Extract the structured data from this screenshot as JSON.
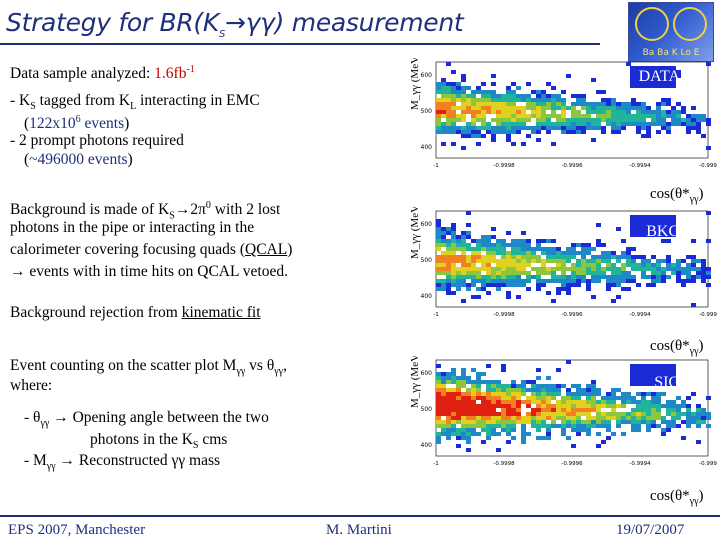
{
  "title": "Strategy for BR(K_S→γγ) measurement",
  "logo": {
    "text": "Ba Ba K Lo E"
  },
  "text": {
    "sample_label": "Data sample analyzed:",
    "sample_value": "1.6fb",
    "sample_exp": "-1",
    "bullet1": "- K_S tagged from K_L interacting in EMC",
    "bullet1_val": "(122x10^6 events)",
    "bullet2": "- 2 prompt photons required",
    "bullet2_val": "(~496000 events)",
    "bkg_line1": "Background is made of K_S→2π0 with 2 lost",
    "bkg_line2": "photons in the pipe or interacting in the",
    "bkg_line3": "calorimeter covering focusing quads (QCAL)",
    "bkg_line4": "→ events with in time hits on QCAL vetoed.",
    "rejection": "Background rejection from kinematic fit",
    "counting_line1": "Event counting on the scatter plot Mγγ vs θγγ,",
    "counting_line2": "where:",
    "def1_a": "- θγγ → Opening angle between the two",
    "def1_b": "photons in the K_S cms",
    "def2": "- Mγγ → Reconstructed γγ mass"
  },
  "plots": [
    {
      "label": "DATA",
      "ylabel": "M_γγ (MeV)",
      "yticks": [
        "600",
        "500",
        "400"
      ],
      "xticks": [
        "-1",
        "-0.9998",
        "-0.9996",
        "-0.9994",
        "-0.999"
      ]
    },
    {
      "label": "BKG",
      "ylabel": "M_γγ (MeV)",
      "yticks": [
        "600",
        "500",
        "400"
      ],
      "xticks": [
        "-1",
        "-0.9998",
        "-0.9996",
        "-0.9994",
        "-0.999"
      ]
    },
    {
      "label": "SIG",
      "ylabel": "M_γγ (MeV)",
      "yticks": [
        "600",
        "500",
        "400"
      ],
      "xticks": [
        "-1",
        "-0.9998",
        "-0.9996",
        "-0.9994",
        "-0.999"
      ]
    }
  ],
  "axis_label": "cos(θ*γγ)",
  "footer": {
    "left": "EPS 2007, Manchester",
    "center": "M. Martini",
    "right": "19/07/2007"
  },
  "colors": {
    "title": "#1f2f7a",
    "accent": "#c00000",
    "plot_bg": "#1a2bd6"
  }
}
